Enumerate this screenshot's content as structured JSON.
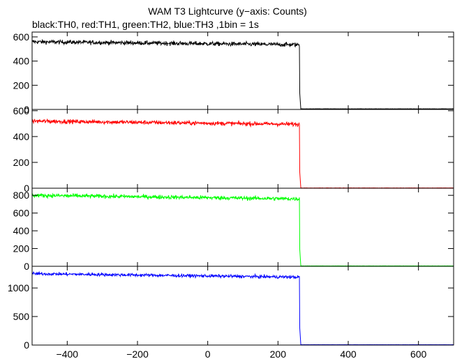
{
  "title": "WAM T3 Lightcurve (y−axis: Counts)",
  "subtitle": "black:TH0, red:TH1, green:TH2, blue:TH3 ,1bin = 1s",
  "chart_data": {
    "type": "line",
    "x": {
      "lim": [
        -500,
        700
      ],
      "ticks": [
        -400,
        -200,
        0,
        200,
        400,
        600
      ]
    },
    "series": [
      {
        "color": "#000000",
        "ylim": [
          0,
          640
        ],
        "yticks": [
          0,
          200,
          400,
          600
        ],
        "level_start": 560,
        "level_end": 535,
        "noise": 35,
        "cutoff": 262,
        "after": 5
      },
      {
        "color": "#ff0000",
        "ylim": [
          0,
          610
        ],
        "yticks": [
          0,
          200,
          400,
          600
        ],
        "level_start": 520,
        "level_end": 495,
        "noise": 32,
        "cutoff": 262,
        "after": 2
      },
      {
        "color": "#00ff00",
        "ylim": [
          0,
          880
        ],
        "yticks": [
          0,
          200,
          400,
          600,
          800
        ],
        "level_start": 800,
        "level_end": 760,
        "noise": 45,
        "cutoff": 262,
        "after": 4
      },
      {
        "color": "#0000ff",
        "ylim": [
          0,
          1380
        ],
        "yticks": [
          0,
          500,
          1000
        ],
        "level_start": 1250,
        "level_end": 1190,
        "noise": 55,
        "cutoff": 262,
        "after": 6
      }
    ]
  }
}
